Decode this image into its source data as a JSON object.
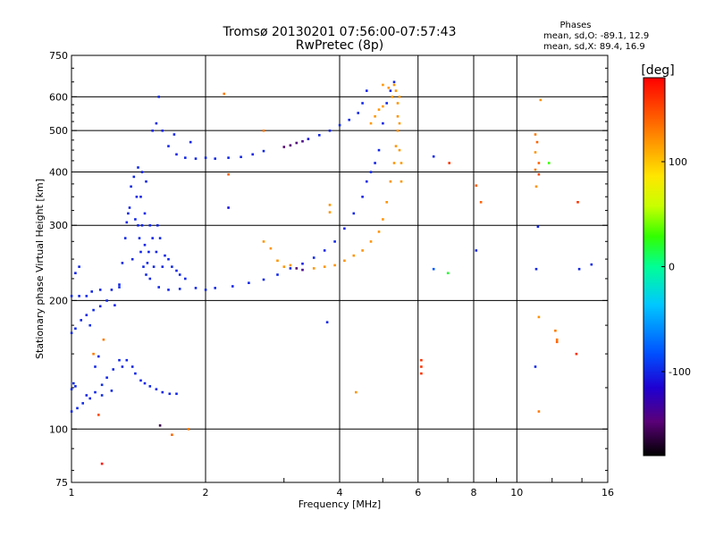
{
  "chart_data": {
    "type": "scatter",
    "title": "Tromsø 20130201 07:56:00-07:57:43",
    "subtitle": "RwPretec (8p)",
    "xlabel": "Frequency [MHz]",
    "ylabel": "Stationary phase Virtual Height [km]",
    "xscale": "log",
    "yscale": "log",
    "xlim": [
      1,
      16
    ],
    "ylim": [
      75,
      750
    ],
    "xticks": [
      1,
      2,
      4,
      6,
      8,
      10,
      16
    ],
    "yticks": [
      75,
      100,
      200,
      300,
      400,
      500,
      600,
      750
    ],
    "grid": true,
    "phases": {
      "heading": "Phases",
      "o_mode": "mean, sd,O: -89.1, 12.9",
      "x_mode": "mean, sd,X:  89.4, 16.9"
    },
    "colorbar": {
      "label": "[deg]",
      "min": -180,
      "max": 180,
      "ticks": [
        100,
        0,
        -100
      ],
      "colors": [
        "#000000",
        "#5a0078",
        "#1e00d2",
        "#0050ff",
        "#00c8ff",
        "#00ff96",
        "#32ff00",
        "#c8ff00",
        "#ffe600",
        "#ff9600",
        "#ff4600",
        "#ff0000"
      ]
    },
    "series": [
      {
        "colorscale": "phase",
        "points": [
          [
            1.0,
            205,
            -100
          ],
          [
            1.04,
            205,
            -100
          ],
          [
            1.08,
            205,
            -98
          ],
          [
            1.11,
            210,
            -100
          ],
          [
            1.16,
            212,
            -100
          ],
          [
            1.23,
            212,
            -102
          ],
          [
            1.28,
            218,
            -100
          ],
          [
            1.04,
            240,
            -100
          ],
          [
            1.02,
            232,
            -102
          ],
          [
            1.0,
            168,
            -100
          ],
          [
            1.02,
            172,
            -98
          ],
          [
            1.05,
            180,
            -100
          ],
          [
            1.08,
            185,
            -100
          ],
          [
            1.12,
            190,
            -98
          ],
          [
            1.16,
            194,
            -100
          ],
          [
            1.2,
            200,
            -100
          ],
          [
            1.1,
            175,
            -96
          ],
          [
            1.01,
            128,
            -98
          ],
          [
            1.02,
            126,
            -100
          ],
          [
            1.0,
            124,
            -100
          ],
          [
            1.0,
            110,
            -100
          ],
          [
            1.03,
            112,
            -100
          ],
          [
            1.06,
            115,
            -98
          ],
          [
            1.1,
            118,
            -100
          ],
          [
            1.13,
            122,
            -100
          ],
          [
            1.17,
            127,
            -98
          ],
          [
            1.2,
            132,
            -100
          ],
          [
            1.24,
            138,
            -100
          ],
          [
            1.28,
            145,
            -100
          ],
          [
            1.17,
            120,
            -98
          ],
          [
            1.23,
            123,
            -100
          ],
          [
            1.08,
            120,
            -100
          ],
          [
            1.13,
            140,
            -100
          ],
          [
            1.15,
            148,
            -100
          ],
          [
            1.25,
            195,
            -100
          ],
          [
            1.28,
            215,
            -100
          ],
          [
            1.3,
            245,
            -100
          ],
          [
            1.32,
            280,
            -100
          ],
          [
            1.34,
            320,
            -100
          ],
          [
            1.36,
            370,
            -100
          ],
          [
            1.38,
            390,
            -100
          ],
          [
            1.4,
            350,
            -100
          ],
          [
            1.41,
            300,
            -100
          ],
          [
            1.43,
            260,
            -100
          ],
          [
            1.45,
            240,
            -100
          ],
          [
            1.47,
            230,
            -100
          ],
          [
            1.5,
            225,
            -100
          ],
          [
            1.53,
            240,
            -100
          ],
          [
            1.55,
            260,
            -100
          ],
          [
            1.58,
            280,
            -100
          ],
          [
            1.35,
            330,
            -102
          ],
          [
            1.39,
            310,
            -100
          ],
          [
            1.42,
            280,
            -100
          ],
          [
            1.44,
            300,
            -100
          ],
          [
            1.37,
            250,
            -100
          ],
          [
            1.46,
            270,
            -100
          ],
          [
            1.49,
            260,
            -100
          ],
          [
            1.43,
            350,
            -100
          ],
          [
            1.46,
            320,
            -100
          ],
          [
            1.5,
            300,
            -100
          ],
          [
            1.52,
            280,
            -100
          ],
          [
            1.48,
            245,
            -100
          ],
          [
            1.56,
            300,
            -100
          ],
          [
            1.6,
            240,
            -100
          ],
          [
            1.62,
            255,
            -100
          ],
          [
            1.65,
            250,
            -100
          ],
          [
            1.68,
            240,
            -100
          ],
          [
            1.72,
            235,
            -100
          ],
          [
            1.75,
            230,
            -100
          ],
          [
            1.8,
            225,
            -100
          ],
          [
            1.44,
            400,
            -102
          ],
          [
            1.47,
            380,
            -100
          ],
          [
            1.41,
            410,
            -100
          ],
          [
            1.33,
            305,
            -100
          ],
          [
            1.3,
            140,
            -100
          ],
          [
            1.33,
            145,
            -100
          ],
          [
            1.37,
            140,
            -100
          ],
          [
            1.39,
            135,
            -100
          ],
          [
            1.43,
            130,
            -100
          ],
          [
            1.46,
            128,
            -100
          ],
          [
            1.5,
            126,
            -100
          ],
          [
            1.55,
            124,
            -100
          ],
          [
            1.6,
            122,
            -100
          ],
          [
            1.66,
            121,
            -100
          ],
          [
            1.72,
            121,
            -100
          ],
          [
            1.57,
            215,
            -100
          ],
          [
            1.65,
            212,
            -100
          ],
          [
            1.75,
            213,
            -100
          ],
          [
            1.9,
            214,
            -100
          ],
          [
            2.0,
            212,
            -100
          ],
          [
            2.1,
            214,
            -100
          ],
          [
            2.3,
            216,
            -100
          ],
          [
            2.5,
            220,
            -100
          ],
          [
            2.7,
            224,
            -100
          ],
          [
            2.9,
            230,
            -100
          ],
          [
            3.1,
            238,
            -100
          ],
          [
            3.3,
            244,
            -102
          ],
          [
            3.5,
            252,
            -100
          ],
          [
            3.7,
            262,
            -100
          ],
          [
            3.9,
            275,
            -100
          ],
          [
            4.1,
            295,
            -100
          ],
          [
            4.3,
            320,
            -100
          ],
          [
            4.5,
            350,
            -100
          ],
          [
            4.6,
            380,
            -100
          ],
          [
            4.7,
            400,
            -100
          ],
          [
            4.8,
            420,
            -102
          ],
          [
            4.9,
            450,
            -100
          ],
          [
            5.0,
            520,
            -100
          ],
          [
            5.1,
            580,
            -100
          ],
          [
            5.2,
            620,
            -100
          ],
          [
            5.3,
            650,
            -100
          ],
          [
            1.6,
            500,
            -100
          ],
          [
            1.65,
            460,
            -100
          ],
          [
            1.72,
            440,
            -100
          ],
          [
            1.8,
            432,
            -100
          ],
          [
            1.9,
            430,
            -100
          ],
          [
            2.0,
            432,
            -100
          ],
          [
            2.1,
            430,
            -100
          ],
          [
            2.25,
            432,
            -100
          ],
          [
            2.4,
            434,
            -100
          ],
          [
            2.55,
            440,
            -100
          ],
          [
            2.7,
            448,
            -100
          ],
          [
            1.55,
            520,
            -100
          ],
          [
            1.52,
            500,
            -100
          ],
          [
            1.7,
            490,
            -100
          ],
          [
            1.85,
            470,
            -100
          ],
          [
            3.0,
            458,
            -150
          ],
          [
            3.1,
            462,
            -148
          ],
          [
            3.2,
            468,
            -145
          ],
          [
            3.3,
            472,
            -140
          ],
          [
            3.4,
            478,
            -110
          ],
          [
            3.6,
            488,
            -100
          ],
          [
            3.8,
            500,
            -100
          ],
          [
            4.0,
            515,
            -100
          ],
          [
            4.2,
            530,
            -100
          ],
          [
            4.4,
            550,
            -100
          ],
          [
            4.5,
            580,
            -100
          ],
          [
            4.6,
            620,
            -100
          ],
          [
            2.9,
            248,
            120
          ],
          [
            3.0,
            240,
            120
          ],
          [
            3.1,
            242,
            120
          ],
          [
            3.2,
            238,
            -150
          ],
          [
            3.3,
            236,
            -140
          ],
          [
            3.5,
            238,
            120
          ],
          [
            3.7,
            240,
            120
          ],
          [
            3.9,
            242,
            120
          ],
          [
            4.1,
            248,
            120
          ],
          [
            4.3,
            255,
            120
          ],
          [
            4.5,
            262,
            120
          ],
          [
            4.7,
            275,
            120
          ],
          [
            4.9,
            290,
            120
          ],
          [
            5.0,
            310,
            120
          ],
          [
            5.1,
            340,
            120
          ],
          [
            5.2,
            380,
            120
          ],
          [
            5.3,
            420,
            120
          ],
          [
            5.35,
            460,
            120
          ],
          [
            5.4,
            500,
            120
          ],
          [
            5.4,
            540,
            120
          ],
          [
            5.4,
            580,
            120
          ],
          [
            5.35,
            620,
            120
          ],
          [
            5.3,
            640,
            120
          ],
          [
            5.45,
            450,
            118
          ],
          [
            5.45,
            520,
            118
          ],
          [
            5.45,
            600,
            118
          ],
          [
            5.5,
            380,
            118
          ],
          [
            5.5,
            420,
            118
          ],
          [
            5.25,
            600,
            118
          ],
          [
            5.15,
            630,
            118
          ],
          [
            5.0,
            640,
            118
          ],
          [
            4.7,
            520,
            118
          ],
          [
            4.8,
            540,
            118
          ],
          [
            4.9,
            560,
            118
          ],
          [
            5.0,
            570,
            118
          ],
          [
            2.7,
            275,
            120
          ],
          [
            2.8,
            265,
            120
          ],
          [
            3.8,
            335,
            120
          ],
          [
            3.8,
            322,
            120
          ],
          [
            2.2,
            610,
            130
          ],
          [
            2.7,
            500,
            130
          ],
          [
            2.25,
            395,
            140
          ],
          [
            2.25,
            330,
            -110
          ],
          [
            1.57,
            600,
            -100
          ],
          [
            1.83,
            100,
            130
          ],
          [
            1.68,
            97,
            140
          ],
          [
            1.17,
            83,
            175
          ],
          [
            1.15,
            108,
            150
          ],
          [
            1.18,
            162,
            130
          ],
          [
            1.12,
            150,
            130
          ],
          [
            1.58,
            102,
            -160
          ],
          [
            3.75,
            178,
            -100
          ],
          [
            4.35,
            122,
            120
          ],
          [
            6.1,
            140,
            160
          ],
          [
            6.1,
            135,
            160
          ],
          [
            6.1,
            145,
            160
          ],
          [
            6.5,
            435,
            -100
          ],
          [
            6.5,
            237,
            -80
          ],
          [
            7.0,
            232,
            20
          ],
          [
            7.05,
            420,
            160
          ],
          [
            8.1,
            262,
            -100
          ],
          [
            8.1,
            372,
            140
          ],
          [
            8.3,
            340,
            140
          ],
          [
            11.3,
            590,
            120
          ],
          [
            11.0,
            490,
            130
          ],
          [
            11.1,
            470,
            140
          ],
          [
            11.0,
            445,
            120
          ],
          [
            11.2,
            420,
            140
          ],
          [
            11.0,
            405,
            130
          ],
          [
            11.2,
            395,
            150
          ],
          [
            11.05,
            370,
            120
          ],
          [
            11.15,
            298,
            -100
          ],
          [
            11.05,
            237,
            -100
          ],
          [
            11.2,
            183,
            120
          ],
          [
            11.0,
            140,
            -100
          ],
          [
            11.2,
            110,
            130
          ],
          [
            12.2,
            170,
            130
          ],
          [
            12.3,
            162,
            130
          ],
          [
            12.3,
            160,
            140
          ],
          [
            11.8,
            420,
            30
          ],
          [
            13.7,
            340,
            160
          ],
          [
            13.8,
            237,
            -100
          ],
          [
            14.7,
            243,
            -100
          ],
          [
            13.6,
            150,
            160
          ]
        ]
      }
    ]
  }
}
